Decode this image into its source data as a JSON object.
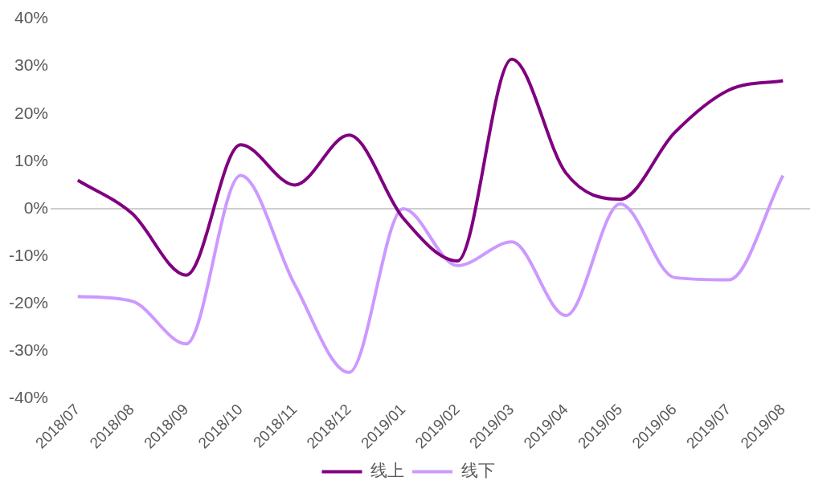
{
  "chart_data": {
    "type": "line",
    "categories": [
      "2018/07",
      "2018/08",
      "2018/09",
      "2018/10",
      "2018/11",
      "2018/12",
      "2019/01",
      "2019/02",
      "2019/03",
      "2019/04",
      "2019/05",
      "2019/06",
      "2019/07",
      "2019/08"
    ],
    "series": [
      {
        "name": "线上",
        "color": "#800080",
        "values": [
          6,
          -1,
          -14,
          13.5,
          5,
          15.5,
          -2,
          -11,
          31.5,
          7.5,
          2,
          16,
          25,
          27
        ]
      },
      {
        "name": "线下",
        "color": "#cc99ff",
        "values": [
          -18.5,
          -19.5,
          -28.5,
          7,
          -16,
          -34.5,
          0,
          -12,
          -7,
          -22.5,
          1,
          -14.5,
          -15,
          7
        ]
      }
    ],
    "ylim": [
      -40,
      40
    ],
    "yticks": [
      {
        "value": -40,
        "label": "-40%"
      },
      {
        "value": -30,
        "label": "-30%"
      },
      {
        "value": -20,
        "label": "-20%"
      },
      {
        "value": -10,
        "label": "-10%"
      },
      {
        "value": 0,
        "label": "0%"
      },
      {
        "value": 10,
        "label": "10%"
      },
      {
        "value": 20,
        "label": "20%"
      },
      {
        "value": 30,
        "label": "30%"
      },
      {
        "value": 40,
        "label": "40%"
      }
    ],
    "ref_lines": [
      {
        "axis": "y",
        "value": 0,
        "color": "#bfbfbf",
        "line_style": "solid"
      }
    ],
    "grid": false,
    "legend": "bottom",
    "marker": "none",
    "line_style": "solid"
  }
}
